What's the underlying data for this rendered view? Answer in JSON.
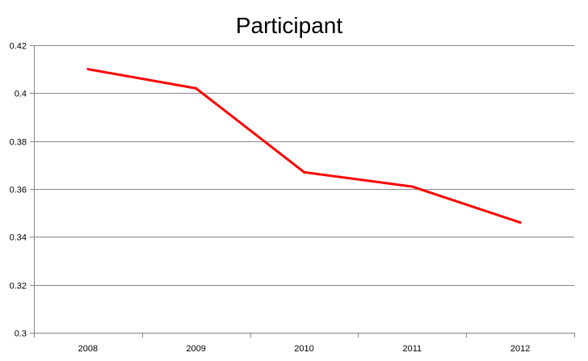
{
  "chart_data": {
    "type": "line",
    "title": "Participant",
    "xlabel": "",
    "ylabel": "",
    "categories": [
      "2008",
      "2009",
      "2010",
      "2011",
      "2012"
    ],
    "series": [
      {
        "values": [
          0.41,
          0.402,
          0.367,
          0.361,
          0.346
        ],
        "color": "#ff0000"
      }
    ],
    "ylim": [
      0.3,
      0.42
    ],
    "yticks": [
      0.3,
      0.32,
      0.34,
      0.36,
      0.38,
      0.4,
      0.42
    ],
    "ytick_labels": [
      "0.3",
      "0.32",
      "0.34",
      "0.36",
      "0.38",
      "0.4",
      "0.42"
    ],
    "grid": true,
    "legend": "none"
  }
}
